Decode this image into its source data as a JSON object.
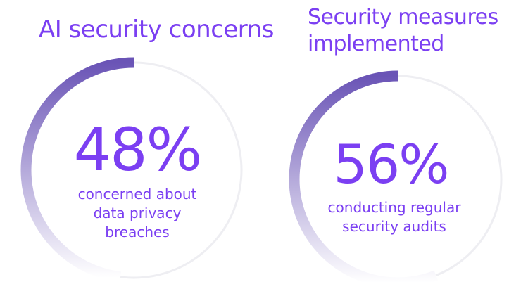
{
  "chart_data": [
    {
      "type": "pie",
      "title": "AI security concerns",
      "value_percent": 48,
      "value_label": "48%",
      "caption": "concerned about data privacy breaches",
      "caption_lines": [
        "concerned about",
        "data privacy",
        "breaches"
      ]
    },
    {
      "type": "pie",
      "title": "Security measures implemented",
      "title_lines": [
        "Security measures",
        "implemented"
      ],
      "value_percent": 56,
      "value_label": "56%",
      "caption": "conducting regular security audits",
      "caption_lines": [
        "conducting regular",
        "security audits"
      ]
    }
  ],
  "colors": {
    "accent": "#7b3ff2",
    "arc_start": "#ffffff",
    "arc_end": "#6a54b6",
    "track": "#eeeef2",
    "background": "#ffffff"
  }
}
